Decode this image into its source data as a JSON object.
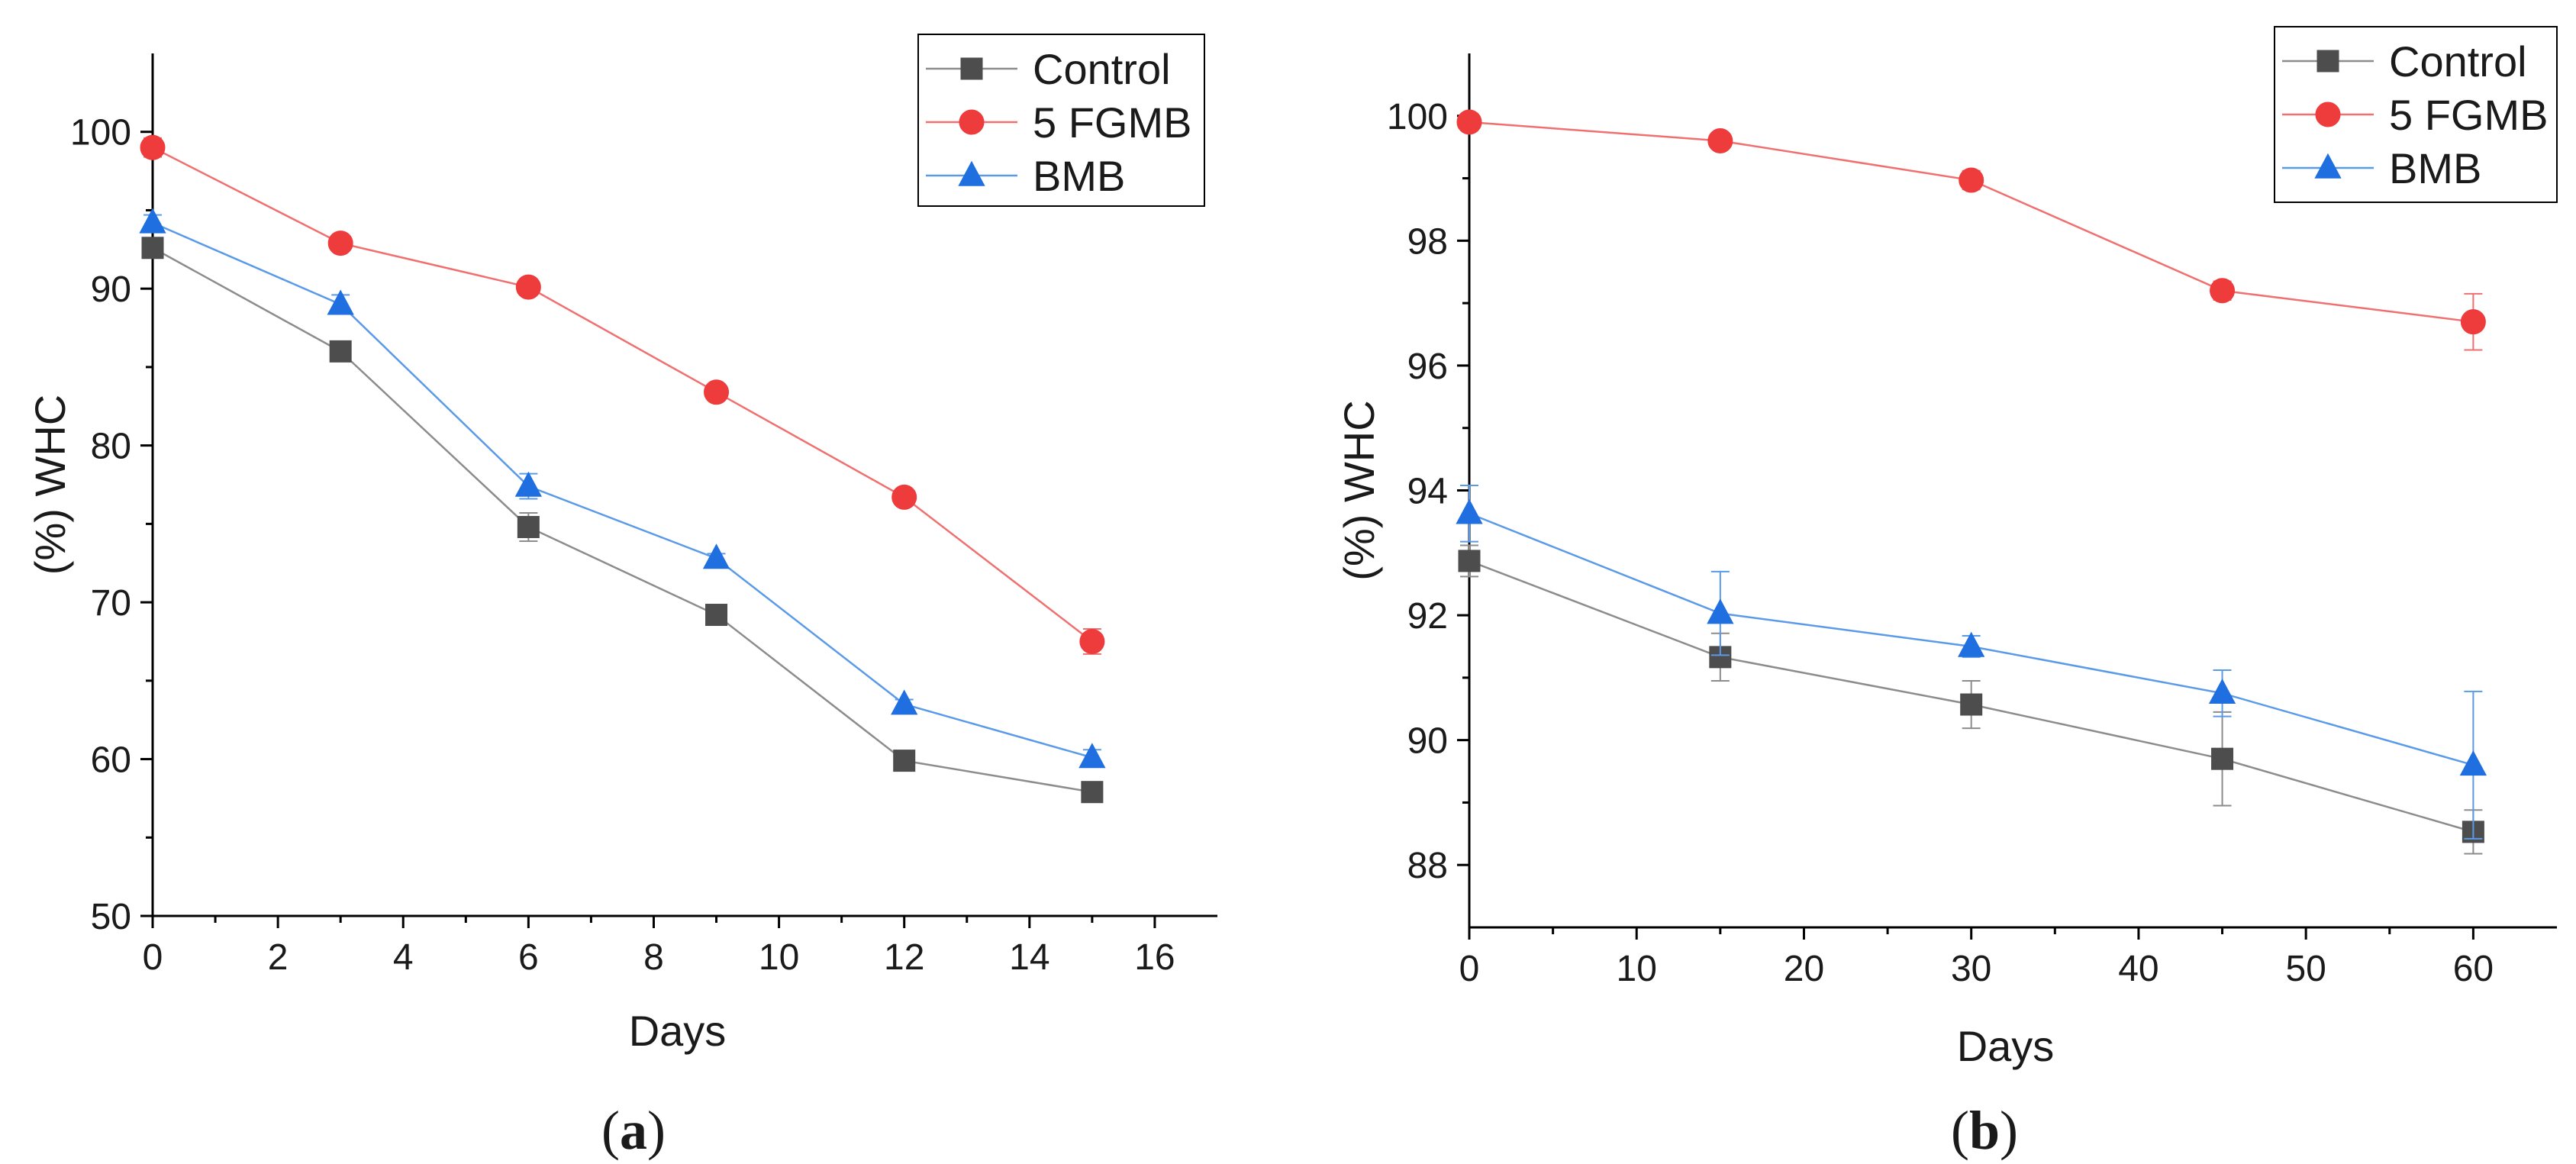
{
  "chart_data": [
    {
      "type": "line",
      "caption_letter": "a",
      "xlabel": "Days",
      "ylabel": "(%) WHC",
      "xlim": [
        0,
        17
      ],
      "ylim": [
        50,
        105
      ],
      "xticks": [
        0,
        2,
        4,
        6,
        8,
        10,
        12,
        14,
        16
      ],
      "yticks": [
        50,
        60,
        70,
        80,
        90,
        100
      ],
      "legend_position": "top-right",
      "grid": false,
      "x": [
        0,
        3,
        6,
        9,
        12,
        15
      ],
      "series": [
        {
          "name": "Control",
          "marker": "square",
          "color": "#4d4d4d",
          "line_color": "#8c8c8c",
          "values": [
            92.6,
            86.0,
            74.8,
            69.2,
            59.9,
            57.9
          ],
          "errors": [
            0.4,
            0.4,
            0.9,
            0.3,
            0.3,
            0.3
          ]
        },
        {
          "name": "5 FGMB",
          "marker": "circle",
          "color": "#ee3b3b",
          "line_color": "#f07070",
          "values": [
            99.0,
            92.9,
            90.1,
            83.4,
            76.7,
            67.5
          ],
          "errors": [
            0.6,
            0.4,
            0.5,
            0.3,
            0.3,
            0.8
          ]
        },
        {
          "name": "BMB",
          "marker": "triangle",
          "color": "#1f6fe0",
          "line_color": "#5a9ae8",
          "values": [
            94.2,
            89.0,
            77.4,
            72.8,
            63.5,
            60.1
          ],
          "errors": [
            0.5,
            0.6,
            0.8,
            0.3,
            0.3,
            0.5
          ]
        }
      ]
    },
    {
      "type": "line",
      "caption_letter": "b",
      "xlabel": "Days",
      "ylabel": "(%) WHC",
      "xlim": [
        0,
        65
      ],
      "ylim": [
        87,
        101
      ],
      "xticks": [
        0,
        10,
        20,
        30,
        40,
        50,
        60
      ],
      "yticks": [
        88,
        90,
        92,
        94,
        96,
        98,
        100
      ],
      "legend_position": "top-right",
      "grid": false,
      "x": [
        0,
        15,
        30,
        45,
        60
      ],
      "series": [
        {
          "name": "Control",
          "marker": "square",
          "color": "#4d4d4d",
          "line_color": "#8c8c8c",
          "values": [
            92.87,
            91.33,
            90.57,
            89.7,
            88.53
          ],
          "errors": [
            0.25,
            0.38,
            0.38,
            0.75,
            0.35
          ]
        },
        {
          "name": "5 FGMB",
          "marker": "circle",
          "color": "#ee3b3b",
          "line_color": "#f07070",
          "values": [
            99.9,
            99.6,
            98.97,
            97.2,
            96.7
          ],
          "errors": [
            0.1,
            0.1,
            0.15,
            0.15,
            0.45
          ]
        },
        {
          "name": "BMB",
          "marker": "triangle",
          "color": "#1f6fe0",
          "line_color": "#5a9ae8",
          "values": [
            93.63,
            92.03,
            91.5,
            90.75,
            89.6
          ],
          "errors": [
            0.45,
            0.67,
            0.17,
            0.37,
            1.18
          ]
        }
      ]
    }
  ]
}
